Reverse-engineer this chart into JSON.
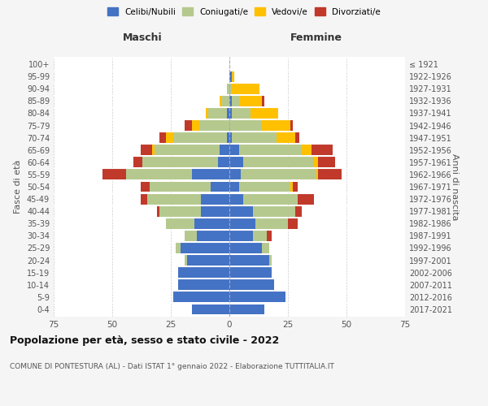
{
  "age_groups": [
    "0-4",
    "5-9",
    "10-14",
    "15-19",
    "20-24",
    "25-29",
    "30-34",
    "35-39",
    "40-44",
    "45-49",
    "50-54",
    "55-59",
    "60-64",
    "65-69",
    "70-74",
    "75-79",
    "80-84",
    "85-89",
    "90-94",
    "95-99",
    "100+"
  ],
  "birth_years": [
    "2017-2021",
    "2012-2016",
    "2007-2011",
    "2002-2006",
    "1997-2001",
    "1992-1996",
    "1987-1991",
    "1982-1986",
    "1977-1981",
    "1972-1976",
    "1967-1971",
    "1962-1966",
    "1957-1961",
    "1952-1956",
    "1947-1951",
    "1942-1946",
    "1937-1941",
    "1932-1936",
    "1927-1931",
    "1922-1926",
    "≤ 1921"
  ],
  "males": {
    "celibi": [
      16,
      24,
      22,
      22,
      18,
      21,
      14,
      15,
      12,
      12,
      8,
      16,
      5,
      4,
      1,
      0,
      1,
      0,
      0,
      0,
      0
    ],
    "coniugati": [
      0,
      0,
      0,
      0,
      1,
      2,
      5,
      12,
      18,
      23,
      26,
      28,
      32,
      28,
      23,
      13,
      8,
      3,
      1,
      0,
      0
    ],
    "vedovi": [
      0,
      0,
      0,
      0,
      0,
      0,
      0,
      0,
      0,
      0,
      0,
      0,
      0,
      1,
      3,
      3,
      1,
      1,
      0,
      0,
      0
    ],
    "divorziati": [
      0,
      0,
      0,
      0,
      0,
      0,
      0,
      0,
      1,
      3,
      4,
      10,
      4,
      5,
      3,
      3,
      0,
      0,
      0,
      0,
      0
    ]
  },
  "females": {
    "nubili": [
      15,
      24,
      19,
      18,
      17,
      14,
      10,
      11,
      10,
      6,
      4,
      5,
      6,
      4,
      1,
      0,
      1,
      1,
      0,
      1,
      0
    ],
    "coniugate": [
      0,
      0,
      0,
      0,
      1,
      3,
      6,
      14,
      18,
      23,
      22,
      32,
      30,
      27,
      19,
      14,
      8,
      3,
      1,
      0,
      0
    ],
    "vedove": [
      0,
      0,
      0,
      0,
      0,
      0,
      0,
      0,
      0,
      0,
      1,
      1,
      2,
      4,
      8,
      12,
      12,
      10,
      12,
      1,
      0
    ],
    "divorziate": [
      0,
      0,
      0,
      0,
      0,
      0,
      2,
      4,
      3,
      7,
      2,
      10,
      7,
      9,
      2,
      1,
      0,
      1,
      0,
      0,
      0
    ]
  },
  "colors": {
    "celibi": "#4472c4",
    "coniugati": "#b5c98e",
    "vedovi": "#ffc000",
    "divorziati": "#c0392b"
  },
  "legend_labels": [
    "Celibi/Nubili",
    "Coniugati/e",
    "Vedovi/e",
    "Divorziati/e"
  ],
  "title": "Popolazione per età, sesso e stato civile - 2022",
  "subtitle": "COMUNE DI PONTESTURA (AL) - Dati ISTAT 1° gennaio 2022 - Elaborazione TUTTITALIA.IT",
  "xlabel_left": "Maschi",
  "xlabel_right": "Femmine",
  "ylabel_left": "Fasce di età",
  "ylabel_right": "Anni di nascita",
  "xlim": 75,
  "background_color": "#f5f5f5",
  "plot_bg_color": "#ffffff"
}
